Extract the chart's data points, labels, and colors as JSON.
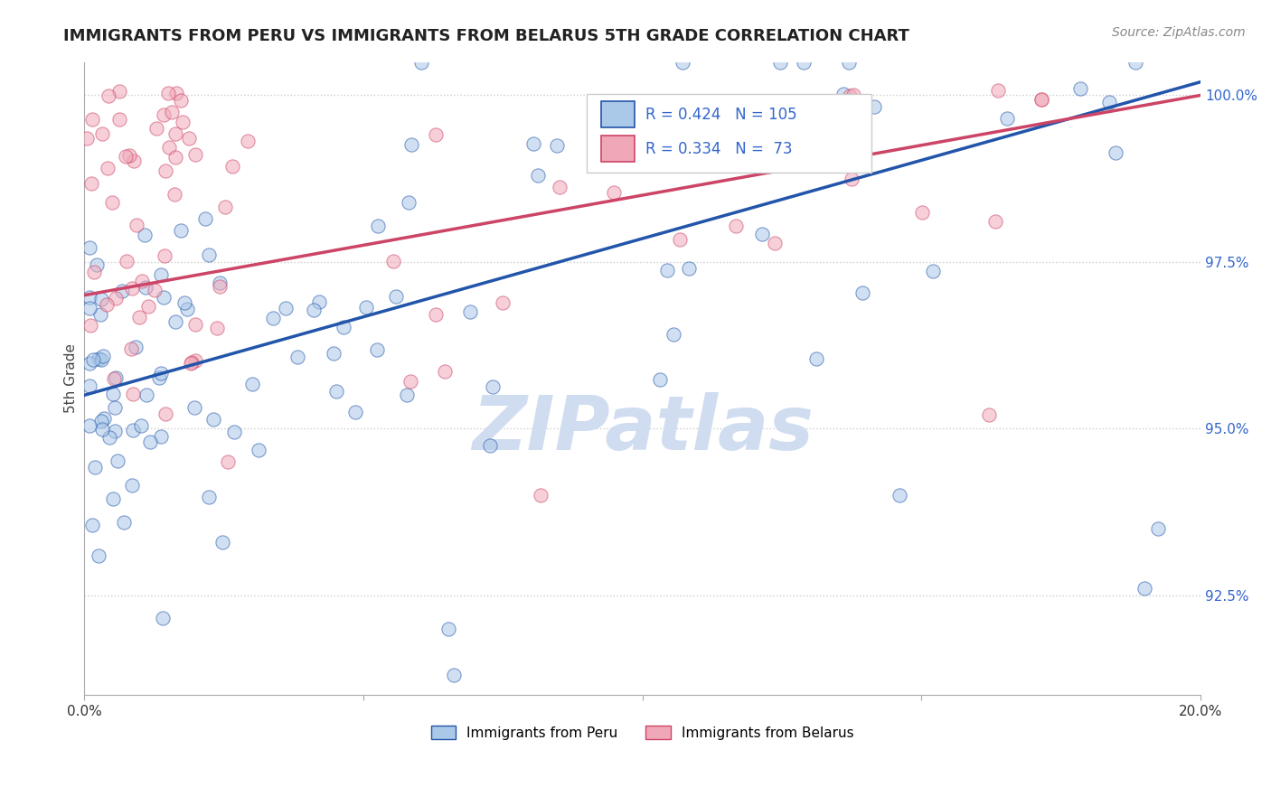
{
  "title": "IMMIGRANTS FROM PERU VS IMMIGRANTS FROM BELARUS 5TH GRADE CORRELATION CHART",
  "source_text": "Source: ZipAtlas.com",
  "ylabel": "5th Grade",
  "watermark": "ZIPatlas",
  "legend_labels": [
    "Immigrants from Peru",
    "Immigrants from Belarus"
  ],
  "legend_colors": [
    "#aac8e8",
    "#f0a8b8"
  ],
  "line_colors": [
    "#2255aa",
    "#cc4466"
  ],
  "r_peru": 0.424,
  "n_peru": 105,
  "r_belarus": 0.334,
  "n_belarus": 73,
  "xlim": [
    0.0,
    0.2
  ],
  "ylim": [
    0.91,
    1.005
  ],
  "yticks": [
    0.925,
    0.95,
    0.975,
    1.0
  ],
  "ytick_labels": [
    "92.5%",
    "95.0%",
    "97.5%",
    "100.0%"
  ],
  "xticks": [
    0.0,
    0.05,
    0.1,
    0.15,
    0.2
  ],
  "xtick_labels": [
    "0.0%",
    "",
    "",
    "",
    "20.0%"
  ],
  "peru_line_x": [
    0.0,
    0.2
  ],
  "peru_line_y": [
    0.955,
    1.002
  ],
  "belarus_line_x": [
    0.0,
    0.2
  ],
  "belarus_line_y": [
    0.97,
    1.0
  ],
  "title_color": "#222222",
  "title_fontsize": 13,
  "ylabel_fontsize": 11,
  "source_fontsize": 10,
  "watermark_color": "#d0ddf0",
  "watermark_fontsize": 60,
  "grid_color": "#cccccc",
  "tick_color": "#3366cc",
  "r_value_color": "#3366cc",
  "scatter_size": 120,
  "scatter_alpha": 0.55
}
